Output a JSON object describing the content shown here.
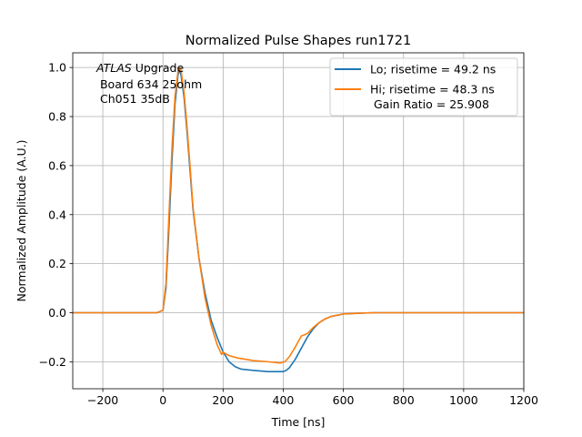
{
  "chart_data": {
    "type": "line",
    "title": "Normalized Pulse Shapes run1721",
    "xlabel": "Time [ns]",
    "ylabel": "Normalized Amplitude (A.U.)",
    "xlim": [
      -300,
      1200
    ],
    "ylim": [
      -0.31,
      1.06
    ],
    "grid": true,
    "x_ticks": [
      -200,
      0,
      200,
      400,
      600,
      800,
      1000,
      1200
    ],
    "y_ticks": [
      -0.2,
      0.0,
      0.2,
      0.4,
      0.6,
      0.8,
      1.0
    ],
    "x_tick_labels": [
      "−200",
      "0",
      "200",
      "400",
      "600",
      "800",
      "1000",
      "1200"
    ],
    "y_tick_labels": [
      "−0.2",
      "0.0",
      "0.2",
      "0.4",
      "0.6",
      "0.8",
      "1.0"
    ],
    "annotation": {
      "italic": "ATLAS",
      "rest": " Upgrade",
      "line2": " Board 634 25ohm",
      "line3": " Ch051 35dB"
    },
    "legend_position": "top-right",
    "series": [
      {
        "name": "Lo; risetime = 49.2 ns",
        "color": "#1f77b4",
        "x": [
          -300,
          -200,
          -100,
          -20,
          0,
          10,
          20,
          30,
          40,
          50,
          55,
          60,
          70,
          80,
          90,
          100,
          120,
          140,
          160,
          180,
          200,
          220,
          240,
          260,
          300,
          350,
          380,
          400,
          410,
          420,
          440,
          460,
          480,
          500,
          520,
          540,
          560,
          580,
          600,
          650,
          700,
          800,
          1000,
          1200
        ],
        "y": [
          0.0,
          0.0,
          0.0,
          0.0,
          0.01,
          0.1,
          0.35,
          0.62,
          0.85,
          0.97,
          0.99,
          0.97,
          0.88,
          0.74,
          0.58,
          0.42,
          0.22,
          0.08,
          -0.03,
          -0.1,
          -0.16,
          -0.2,
          -0.22,
          -0.23,
          -0.235,
          -0.24,
          -0.24,
          -0.24,
          -0.235,
          -0.225,
          -0.19,
          -0.145,
          -0.1,
          -0.065,
          -0.04,
          -0.025,
          -0.015,
          -0.01,
          -0.005,
          -0.002,
          0.0,
          0.0,
          0.0,
          0.0
        ]
      },
      {
        "name": "Hi; risetime = 48.3 ns",
        "name_line2": " Gain Ratio = 25.908",
        "color": "#ff7f0e",
        "x": [
          -300,
          -200,
          -100,
          -20,
          0,
          10,
          20,
          30,
          40,
          50,
          55,
          60,
          70,
          80,
          90,
          100,
          120,
          140,
          160,
          180,
          195,
          200,
          205,
          220,
          250,
          300,
          350,
          390,
          405,
          420,
          440,
          460,
          470,
          480,
          500,
          520,
          540,
          560,
          580,
          600,
          650,
          700,
          800,
          1000,
          1200
        ],
        "y": [
          0.0,
          0.0,
          0.0,
          0.0,
          0.01,
          0.12,
          0.4,
          0.67,
          0.88,
          0.985,
          1.0,
          0.99,
          0.9,
          0.76,
          0.6,
          0.43,
          0.22,
          0.06,
          -0.05,
          -0.13,
          -0.17,
          -0.16,
          -0.165,
          -0.175,
          -0.185,
          -0.195,
          -0.2,
          -0.205,
          -0.2,
          -0.18,
          -0.14,
          -0.095,
          -0.09,
          -0.085,
          -0.06,
          -0.04,
          -0.025,
          -0.015,
          -0.01,
          -0.005,
          -0.002,
          0.0,
          0.0,
          0.0,
          0.0
        ]
      }
    ]
  }
}
